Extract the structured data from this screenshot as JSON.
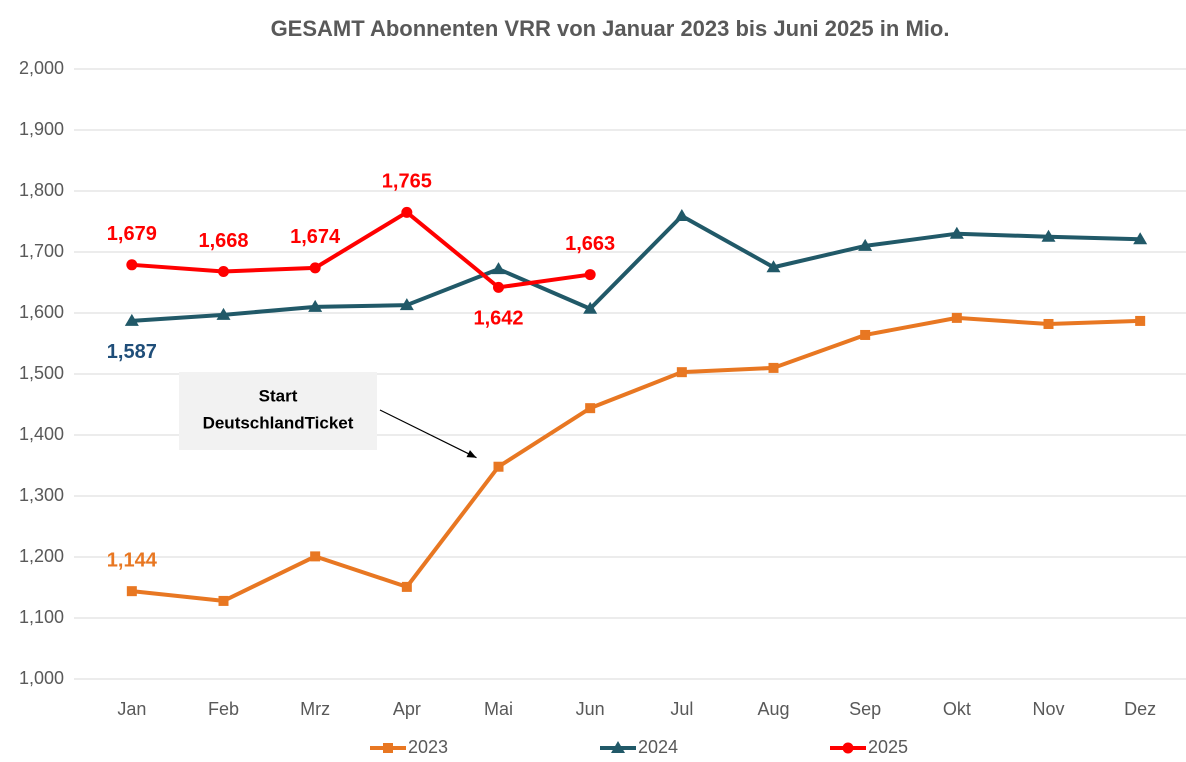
{
  "chart_data": {
    "type": "line",
    "title": "GESAMT Abonnenten VRR von Januar 2023 bis Juni 2025 in Mio.",
    "categories": [
      "Jan",
      "Feb",
      "Mrz",
      "Apr",
      "Mai",
      "Jun",
      "Jul",
      "Aug",
      "Sep",
      "Okt",
      "Nov",
      "Dez"
    ],
    "series": [
      {
        "name": "2023",
        "color": "#e87722",
        "marker": "square",
        "values": [
          1144,
          1128,
          1201,
          1151,
          1348,
          1444,
          1503,
          1510,
          1564,
          1592,
          1582,
          1587
        ],
        "value_labels": [
          "1,144",
          null,
          null,
          null,
          null,
          null,
          null,
          null,
          null,
          null,
          null,
          null
        ],
        "label_color": "#e87722"
      },
      {
        "name": "2024",
        "color": "#215968",
        "marker": "triangle",
        "values": [
          1587,
          1597,
          1610,
          1613,
          1672,
          1607,
          1759,
          1675,
          1710,
          1730,
          1725,
          1721
        ],
        "value_labels": [
          "1,587",
          null,
          null,
          null,
          null,
          null,
          null,
          null,
          null,
          null,
          null,
          null
        ],
        "label_color": "#1f4e79"
      },
      {
        "name": "2025",
        "color": "#ff0000",
        "marker": "circle",
        "values": [
          1679,
          1668,
          1674,
          1765,
          1642,
          1663,
          null,
          null,
          null,
          null,
          null,
          null
        ],
        "value_labels": [
          "1,679",
          "1,668",
          "1,674",
          "1,765",
          "1,642",
          "1,663",
          null,
          null,
          null,
          null,
          null,
          null
        ],
        "label_color": "#ff0000"
      }
    ],
    "ylim": [
      1000,
      2000
    ],
    "yticks": [
      {
        "value": 1000,
        "label": "1,000"
      },
      {
        "value": 1100,
        "label": "1,100"
      },
      {
        "value": 1200,
        "label": "1,200"
      },
      {
        "value": 1300,
        "label": "1,300"
      },
      {
        "value": 1400,
        "label": "1,400"
      },
      {
        "value": 1500,
        "label": "1,500"
      },
      {
        "value": 1600,
        "label": "1,600"
      },
      {
        "value": 1700,
        "label": "1,700"
      },
      {
        "value": 1800,
        "label": "1,800"
      },
      {
        "value": 1900,
        "label": "1,900"
      },
      {
        "value": 2000,
        "label": "2,000"
      }
    ],
    "grid": true,
    "legend": "bottom",
    "annotation": {
      "lines": [
        "Start",
        "DeutschlandTicket"
      ],
      "series": 0,
      "point": 4
    }
  }
}
